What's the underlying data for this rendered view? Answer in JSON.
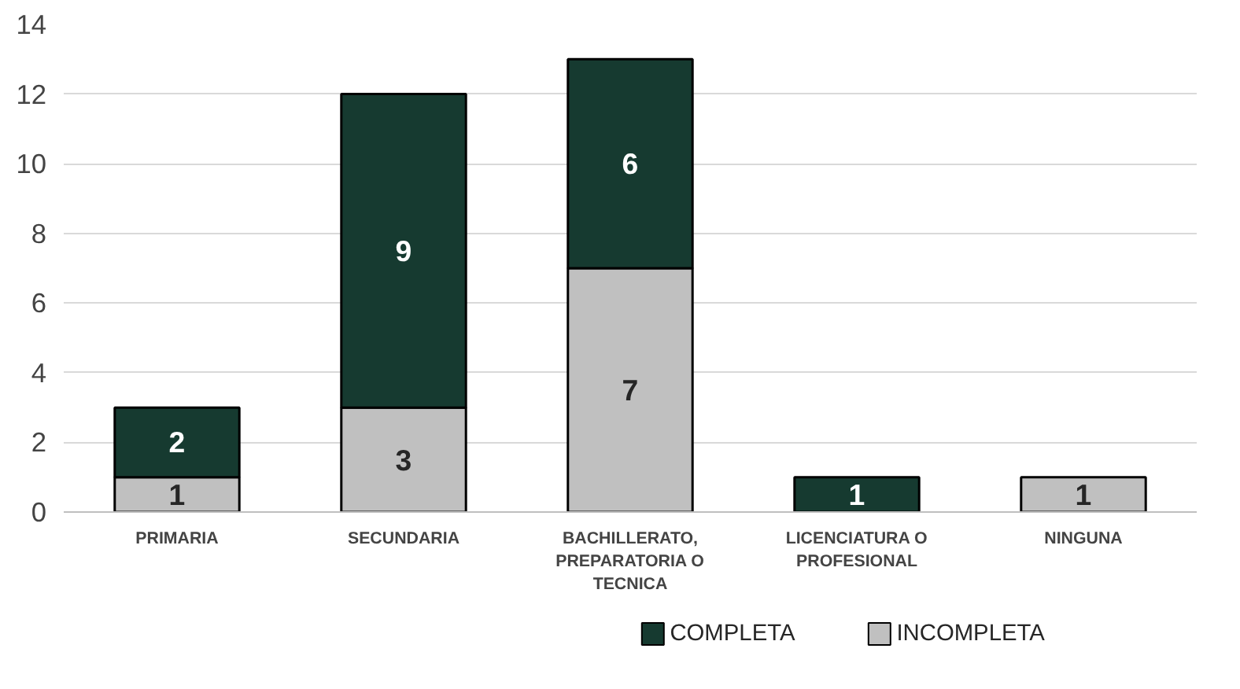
{
  "chart_data": {
    "type": "bar",
    "stacked": true,
    "categories": [
      "PRIMARIA",
      "SECUNDARIA",
      "BACHILLERATO, PREPARATORIA O TECNICA",
      "LICENCIATURA O PROFESIONAL",
      "NINGUNA"
    ],
    "series": [
      {
        "name": "INCOMPLETA",
        "color": "#c0c0c0",
        "values": [
          1,
          3,
          7,
          null,
          1
        ]
      },
      {
        "name": "COMPLETA",
        "color": "#163a30",
        "values": [
          2,
          9,
          6,
          1,
          null
        ]
      }
    ],
    "ylim": [
      0,
      14
    ],
    "yticks": [
      0,
      2,
      4,
      6,
      8,
      10,
      12,
      14
    ],
    "grid": "y",
    "legend": "bottom",
    "data_labels": true
  }
}
